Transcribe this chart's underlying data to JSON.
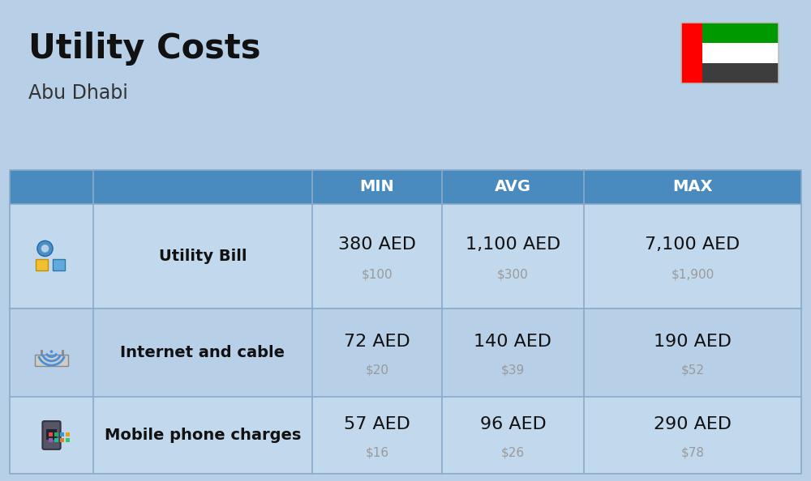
{
  "title": "Utility Costs",
  "subtitle": "Abu Dhabi",
  "background_color": "#b8cfe8",
  "header_color": "#4a8bbf",
  "header_text_color": "#ffffff",
  "row_colors": [
    "#c2d8ed",
    "#b8cfe8",
    "#c2d8ed"
  ],
  "icon_col_colors": [
    "#c2d8ed",
    "#b8cfe8",
    "#c2d8ed"
  ],
  "columns": [
    "MIN",
    "AVG",
    "MAX"
  ],
  "rows": [
    {
      "label": "Utility Bill",
      "aed": [
        "380 AED",
        "1,100 AED",
        "7,100 AED"
      ],
      "usd": [
        "$100",
        "$300",
        "$1,900"
      ]
    },
    {
      "label": "Internet and cable",
      "aed": [
        "72 AED",
        "140 AED",
        "190 AED"
      ],
      "usd": [
        "$20",
        "$39",
        "$52"
      ]
    },
    {
      "label": "Mobile phone charges",
      "aed": [
        "57 AED",
        "96 AED",
        "290 AED"
      ],
      "usd": [
        "$16",
        "$26",
        "$78"
      ]
    }
  ],
  "usd_color": "#9a9a9a",
  "label_color": "#111111",
  "aed_color": "#111111",
  "border_color": "#8aaac8",
  "title_fontsize": 30,
  "subtitle_fontsize": 17,
  "header_fontsize": 14,
  "aed_fontsize": 16,
  "usd_fontsize": 11,
  "label_fontsize": 14
}
